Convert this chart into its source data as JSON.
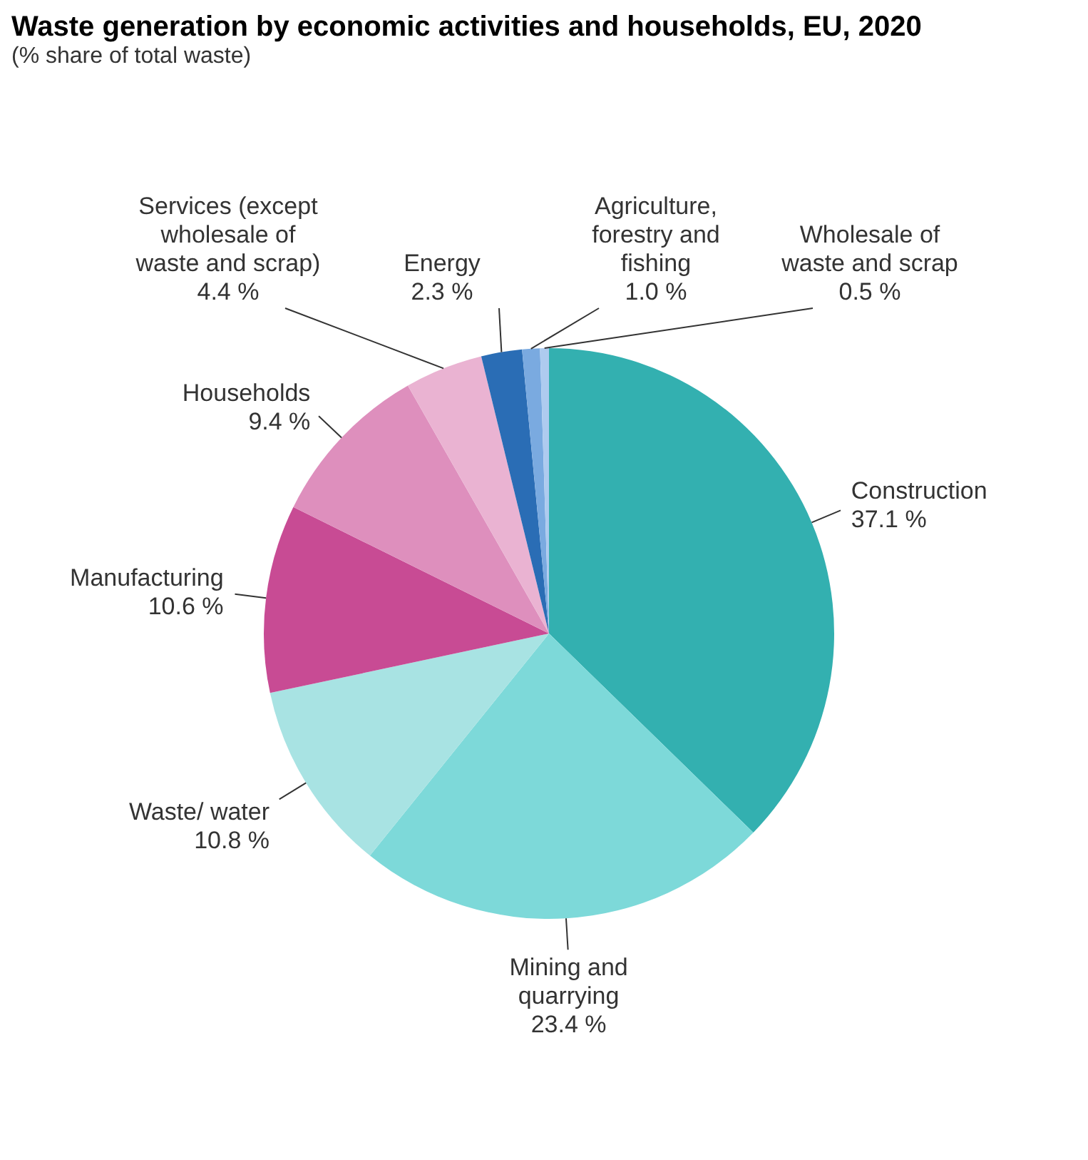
{
  "chart_data": {
    "type": "pie",
    "title": "Waste generation by economic activities and households, EU, 2020",
    "subtitle": "(% share of total waste)",
    "categories": [
      "Construction",
      "Mining and quarrying",
      "Waste/ water",
      "Manufacturing",
      "Households",
      "Services (except wholesale of waste and scrap)",
      "Energy",
      "Agriculture, forestry and fishing",
      "Wholesale of waste and scrap"
    ],
    "values": [
      37.1,
      23.4,
      10.8,
      10.6,
      9.4,
      4.4,
      2.3,
      1.0,
      0.5
    ],
    "value_labels": [
      "37.1 %",
      "23.4 %",
      "10.8 %",
      "10.6 %",
      "9.4 %",
      "4.4 %",
      "2.3 %",
      "1.0 %",
      "0.5 %"
    ],
    "colors": [
      "#33b0b0",
      "#7dd9d9",
      "#a8e3e3",
      "#c84b94",
      "#de8fbd",
      "#eab3d2",
      "#2a6db5",
      "#7aaae0",
      "#aecbef"
    ],
    "legend": false
  }
}
